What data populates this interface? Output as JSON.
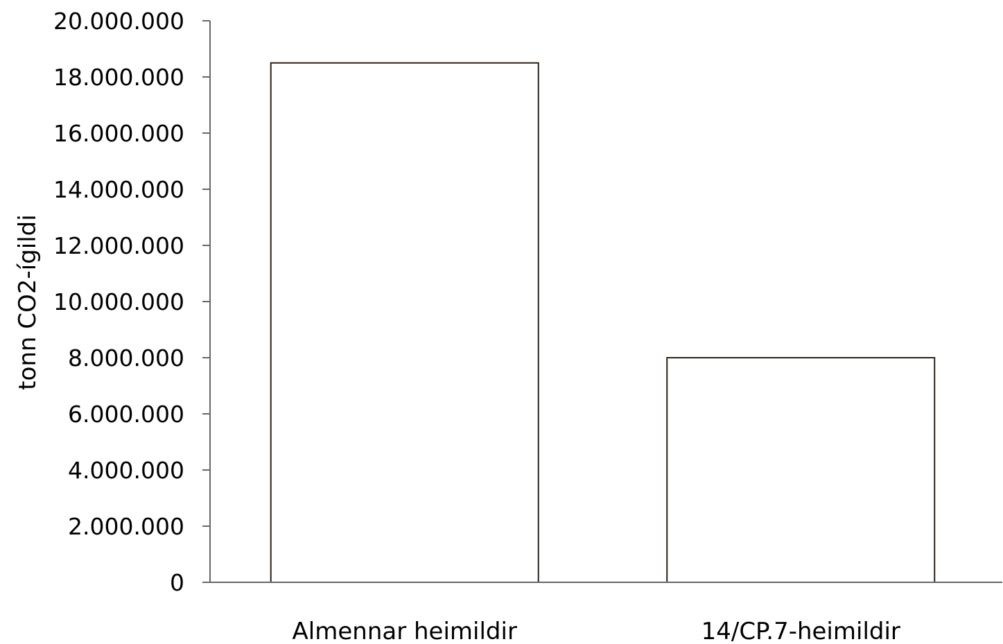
{
  "chart_data": {
    "type": "bar",
    "title": "",
    "xlabel": "",
    "ylabel": "tonn CO2-ígildi",
    "categories": [
      "Almennar heimildir",
      "14/CP.7-heimildir"
    ],
    "values": [
      18500000,
      8000000
    ],
    "ylim": [
      0,
      20000000
    ],
    "yticks": [
      0,
      2000000,
      4000000,
      6000000,
      8000000,
      10000000,
      12000000,
      14000000,
      16000000,
      18000000,
      20000000
    ],
    "ytick_labels": [
      "0",
      "2.000.000",
      "4.000.000",
      "6.000.000",
      "8.000.000",
      "10.000.000",
      "12.000.000",
      "14.000.000",
      "16.000.000",
      "18.000.000",
      "20.000.000"
    ],
    "grid": false,
    "legend": "none",
    "colors": {
      "bar_fill": "#ffffff",
      "bar_stroke": "#2b2116",
      "axis": "#666666"
    }
  }
}
